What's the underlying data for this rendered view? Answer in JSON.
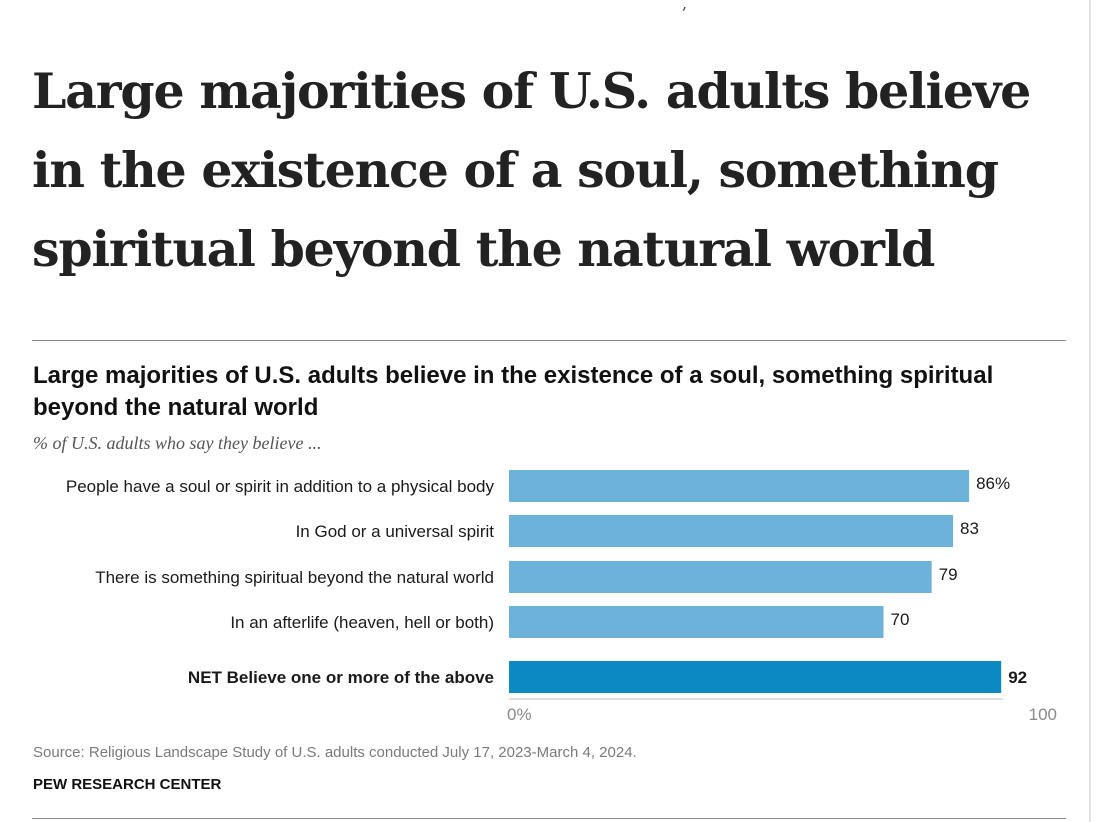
{
  "top_fragment": ",",
  "headline": "Large majorities of U.S. adults believe in the existence of a soul, something spiritual beyond the natural world",
  "chart_data": {
    "type": "bar",
    "orientation": "horizontal",
    "title": "Large majorities of U.S. adults believe in the existence of a soul, something spiritual beyond the natural world",
    "subtitle": "% of U.S. adults who say they believe ...",
    "categories": [
      "People have a soul or spirit in addition to a physical body",
      "In God or a universal spirit",
      "There is something spiritual beyond the natural world",
      "In an afterlife (heaven, hell or both)",
      "NET Believe one or more of the above"
    ],
    "values": [
      86,
      83,
      79,
      70,
      92
    ],
    "value_labels": [
      "86%",
      "83",
      "79",
      "70",
      "92"
    ],
    "emphasized": [
      false,
      false,
      false,
      false,
      true
    ],
    "xlim": [
      0,
      100
    ],
    "x_tick_labels": [
      "0%",
      "100"
    ],
    "grid": false,
    "colors": {
      "bar": "#6cb2d9",
      "net_bar": "#0a8ac0"
    },
    "source": "Source: Religious Landscape Study of U.S. adults conducted July 17, 2023-March 4, 2024.",
    "credit": "PEW RESEARCH CENTER"
  }
}
